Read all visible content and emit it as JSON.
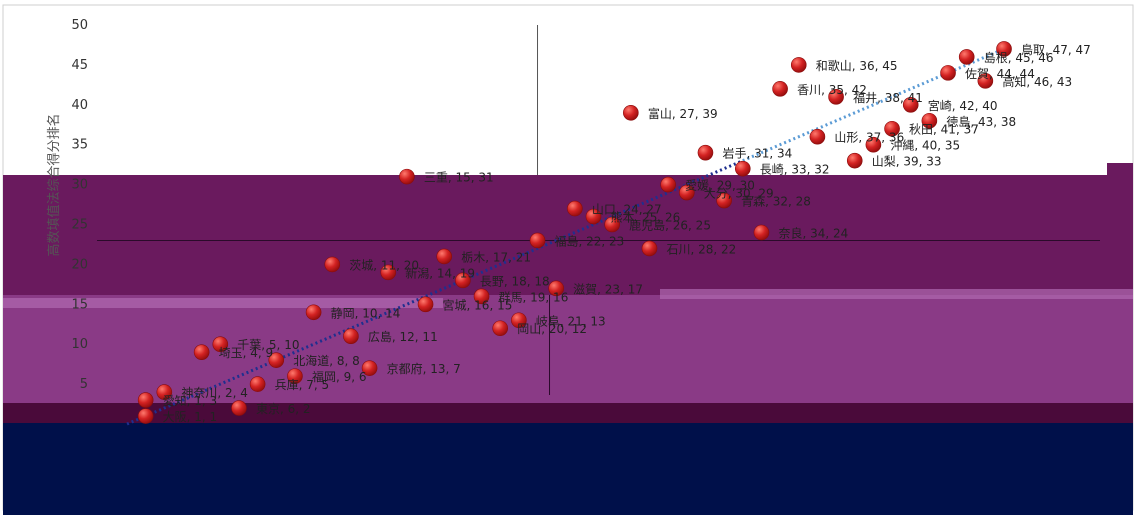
{
  "chart_data": {
    "type": "scatter",
    "title": "",
    "xlabel": "",
    "ylabel": "高数填值法综合得分排名",
    "xlim": [
      0,
      50
    ],
    "ylim": [
      0,
      50
    ],
    "yticks": [
      5,
      10,
      15,
      20,
      25,
      30,
      35,
      40,
      45,
      50
    ],
    "reference_lines": {
      "x": 22,
      "y": 23
    },
    "trendline": {
      "from": [
        0,
        0
      ],
      "to": [
        47,
        47
      ],
      "style": "dotted"
    },
    "colors": {
      "marker": "#d32222",
      "trend_lower": "#1f2f8f",
      "trend_upper": "#5b9bd5",
      "band_upper": "#6a1a5e",
      "band_lower": "#8a3a86",
      "band_bottom": "#00104a"
    },
    "points": [
      {
        "label": "鳥取, 47, 47",
        "x": 47,
        "y": 47
      },
      {
        "label": "島根, 45, 46",
        "x": 45,
        "y": 46
      },
      {
        "label": "佐賀, 44, 44",
        "x": 44,
        "y": 44
      },
      {
        "label": "高知, 46, 43",
        "x": 46,
        "y": 43
      },
      {
        "label": "和歌山, 36, 45",
        "x": 36,
        "y": 45
      },
      {
        "label": "香川, 35, 42",
        "x": 35,
        "y": 42
      },
      {
        "label": "福井, 38, 41",
        "x": 38,
        "y": 41
      },
      {
        "label": "宮崎, 42, 40",
        "x": 42,
        "y": 40
      },
      {
        "label": "富山, 27, 39",
        "x": 27,
        "y": 39
      },
      {
        "label": "徳島, 43, 38",
        "x": 43,
        "y": 38
      },
      {
        "label": "秋田, 41, 37",
        "x": 41,
        "y": 37
      },
      {
        "label": "山形, 37, 36",
        "x": 37,
        "y": 36
      },
      {
        "label": "沖縄, 40, 35",
        "x": 40,
        "y": 35
      },
      {
        "label": "岩手, 31, 34",
        "x": 31,
        "y": 34
      },
      {
        "label": "山梨, 39, 33",
        "x": 39,
        "y": 33
      },
      {
        "label": "長崎, 33, 32",
        "x": 33,
        "y": 32
      },
      {
        "label": "三重, 15, 31",
        "x": 15,
        "y": 31
      },
      {
        "label": "愛媛, 29, 30",
        "x": 29,
        "y": 30
      },
      {
        "label": "大分, 30, 29",
        "x": 30,
        "y": 29
      },
      {
        "label": "青森, 32, 28",
        "x": 32,
        "y": 28
      },
      {
        "label": "山口, 24, 27",
        "x": 24,
        "y": 27
      },
      {
        "label": "熊本, 25, 26",
        "x": 25,
        "y": 26
      },
      {
        "label": "鹿児島, 26, 25",
        "x": 26,
        "y": 25
      },
      {
        "label": "奈良, 34, 24",
        "x": 34,
        "y": 24
      },
      {
        "label": "福島, 22, 23",
        "x": 22,
        "y": 23
      },
      {
        "label": "石川, 28, 22",
        "x": 28,
        "y": 22
      },
      {
        "label": "栃木, 17, 21",
        "x": 17,
        "y": 21
      },
      {
        "label": "茨城, 11, 20",
        "x": 11,
        "y": 20
      },
      {
        "label": "新潟, 14, 19",
        "x": 14,
        "y": 19
      },
      {
        "label": "長野, 18, 18",
        "x": 18,
        "y": 18
      },
      {
        "label": "滋賀, 23, 17",
        "x": 23,
        "y": 17
      },
      {
        "label": "群馬, 19, 16",
        "x": 19,
        "y": 16
      },
      {
        "label": "宮城, 16, 15",
        "x": 16,
        "y": 15
      },
      {
        "label": "静岡, 10, 14",
        "x": 10,
        "y": 14
      },
      {
        "label": "岐阜, 21, 13",
        "x": 21,
        "y": 13
      },
      {
        "label": "岡山, 20, 12",
        "x": 20,
        "y": 12
      },
      {
        "label": "広島, 12, 11",
        "x": 12,
        "y": 11
      },
      {
        "label": "千葉, 5, 10",
        "x": 5,
        "y": 10
      },
      {
        "label": "埼玉, 4, 9",
        "x": 4,
        "y": 9
      },
      {
        "label": "北海道, 8, 8",
        "x": 8,
        "y": 8
      },
      {
        "label": "京都府, 13, 7",
        "x": 13,
        "y": 7
      },
      {
        "label": "福岡, 9, 6",
        "x": 9,
        "y": 6
      },
      {
        "label": "兵庫, 7, 5",
        "x": 7,
        "y": 5
      },
      {
        "label": "神奈川, 2, 4",
        "x": 2,
        "y": 4
      },
      {
        "label": "愛知, 1, 3",
        "x": 1,
        "y": 3
      },
      {
        "label": "東京, 6, 2",
        "x": 6,
        "y": 2
      },
      {
        "label": "大阪, 1, 1",
        "x": 1,
        "y": 1
      }
    ]
  }
}
